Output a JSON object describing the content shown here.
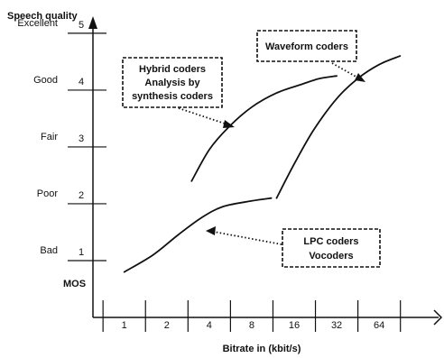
{
  "chart_data": {
    "type": "line",
    "ylabel": "Speech quality",
    "xlabel": "Bitrate in (kbit/s)",
    "mos_label": "MOS",
    "x_ticks": [
      "1",
      "2",
      "4",
      "8",
      "16",
      "32",
      "64"
    ],
    "y_ticks": [
      {
        "value": 1,
        "quality": "Bad"
      },
      {
        "value": 2,
        "quality": "Poor"
      },
      {
        "value": 3,
        "quality": "Fair"
      },
      {
        "value": 4,
        "quality": "Good"
      },
      {
        "value": 5,
        "quality": "Excellent"
      }
    ],
    "xscale": "log2",
    "xlim": [
      0.6,
      150
    ],
    "ylim": [
      0,
      5.3
    ],
    "grid": false,
    "series": [
      {
        "x": [
          1.0,
          1.6,
          2.4,
          3.5,
          5.0,
          8.0,
          11.0
        ],
        "y": [
          0.8,
          1.1,
          1.45,
          1.75,
          1.95,
          2.05,
          2.1
        ]
      },
      {
        "x": [
          3.0,
          4.0,
          5.5,
          8.0,
          12.0,
          18.0,
          24.0,
          32.0
        ],
        "y": [
          2.4,
          2.95,
          3.35,
          3.7,
          3.95,
          4.1,
          4.2,
          4.25
        ]
      },
      {
        "x": [
          12.0,
          16.0,
          22.0,
          32.0,
          45.0,
          64.0,
          90.0
        ],
        "y": [
          2.1,
          2.7,
          3.3,
          3.85,
          4.2,
          4.45,
          4.6
        ]
      }
    ],
    "annotations": [
      {
        "lines": [
          "Hybrid coders",
          "Analysis by",
          "synthesis coders"
        ]
      },
      {
        "lines": [
          "Waveform coders"
        ]
      },
      {
        "lines": [
          "LPC coders",
          "Vocoders"
        ]
      }
    ]
  }
}
